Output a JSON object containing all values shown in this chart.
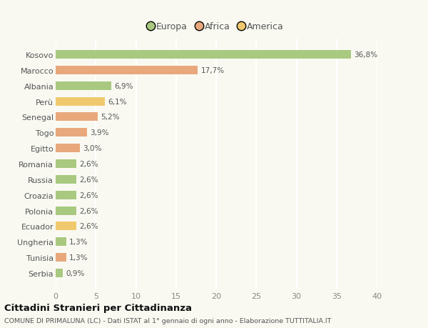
{
  "countries": [
    "Kosovo",
    "Marocco",
    "Albania",
    "Perù",
    "Senegal",
    "Togo",
    "Egitto",
    "Romania",
    "Russia",
    "Croazia",
    "Polonia",
    "Ecuador",
    "Ungheria",
    "Tunisia",
    "Serbia"
  ],
  "values": [
    36.8,
    17.7,
    6.9,
    6.1,
    5.2,
    3.9,
    3.0,
    2.6,
    2.6,
    2.6,
    2.6,
    2.6,
    1.3,
    1.3,
    0.9
  ],
  "labels": [
    "36,8%",
    "17,7%",
    "6,9%",
    "6,1%",
    "5,2%",
    "3,9%",
    "3,0%",
    "2,6%",
    "2,6%",
    "2,6%",
    "2,6%",
    "2,6%",
    "1,3%",
    "1,3%",
    "0,9%"
  ],
  "continents": [
    "Europa",
    "Africa",
    "Europa",
    "America",
    "Africa",
    "Africa",
    "Africa",
    "Europa",
    "Europa",
    "Europa",
    "Europa",
    "America",
    "Europa",
    "Africa",
    "Europa"
  ],
  "colors": {
    "Europa": "#a8c97f",
    "Africa": "#e8a87c",
    "America": "#f0c96e"
  },
  "legend_labels": [
    "Europa",
    "Africa",
    "America"
  ],
  "legend_colors": [
    "#a8c97f",
    "#e8a87c",
    "#f0c96e"
  ],
  "xlim": [
    0,
    40
  ],
  "xticks": [
    0,
    5,
    10,
    15,
    20,
    25,
    30,
    35,
    40
  ],
  "title": "Cittadini Stranieri per Cittadinanza",
  "subtitle": "COMUNE DI PRIMALUNA (LC) - Dati ISTAT al 1° gennaio di ogni anno - Elaborazione TUTTITALIA.IT",
  "background_color": "#f9f9f2",
  "grid_color": "#ffffff",
  "bar_height": 0.55
}
